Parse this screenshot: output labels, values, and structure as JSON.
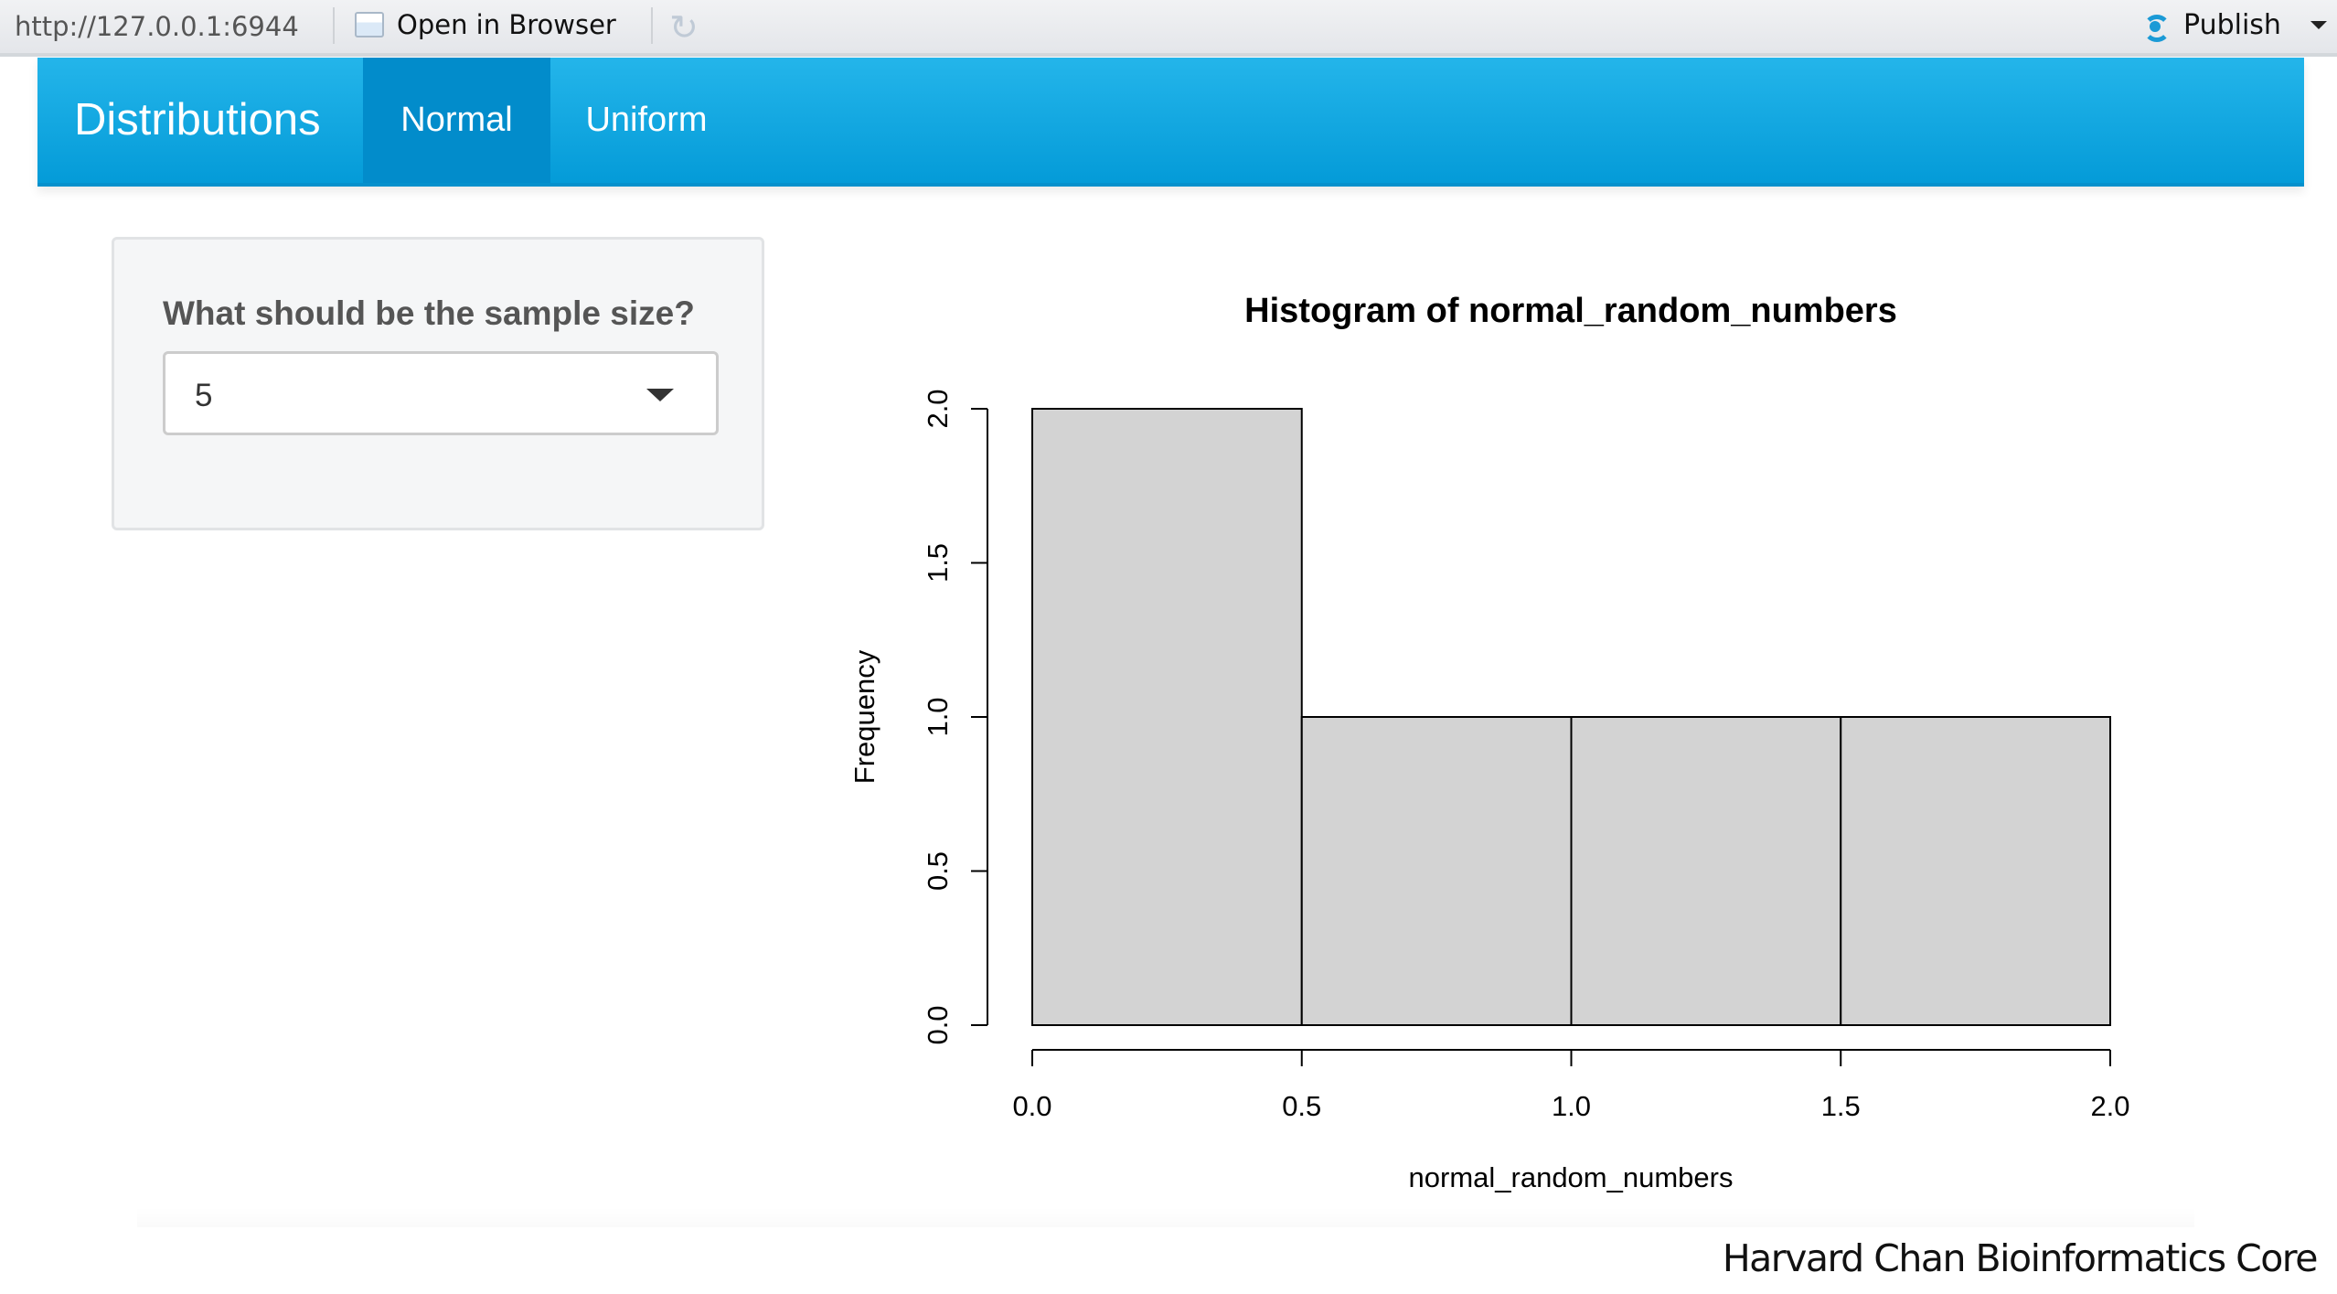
{
  "toolbar": {
    "url": "http://127.0.0.1:6944",
    "open_in_browser": "Open in Browser",
    "refresh_icon": "refresh-icon",
    "publish": "Publish",
    "publish_icon": "rstudio-connect-icon"
  },
  "navbar": {
    "brand": "Distributions",
    "tabs": [
      {
        "label": "Normal",
        "active": true
      },
      {
        "label": "Uniform",
        "active": false
      }
    ],
    "color": "#0ea9e2",
    "active_color": "#028ccb"
  },
  "sidebar": {
    "label": "What should be the sample size?",
    "select_value": "5"
  },
  "chart_data": {
    "type": "bar",
    "title": "Histogram of normal_random_numbers",
    "xlabel": "normal_random_numbers",
    "ylabel": "Frequency",
    "bins": [
      {
        "from": 0.0,
        "to": 0.5,
        "count": 2
      },
      {
        "from": 0.5,
        "to": 1.0,
        "count": 1
      },
      {
        "from": 1.0,
        "to": 1.5,
        "count": 1
      },
      {
        "from": 1.5,
        "to": 2.0,
        "count": 1
      }
    ],
    "xlim": [
      0,
      2
    ],
    "ylim": [
      0,
      2
    ],
    "x_ticks": [
      "0.0",
      "0.5",
      "1.0",
      "1.5",
      "2.0"
    ],
    "y_ticks": [
      "0.0",
      "0.5",
      "1.0",
      "1.5",
      "2.0"
    ],
    "bar_color": "#d3d3d3",
    "grid": false
  },
  "footer": {
    "text": "Harvard Chan Bioinformatics Core"
  }
}
